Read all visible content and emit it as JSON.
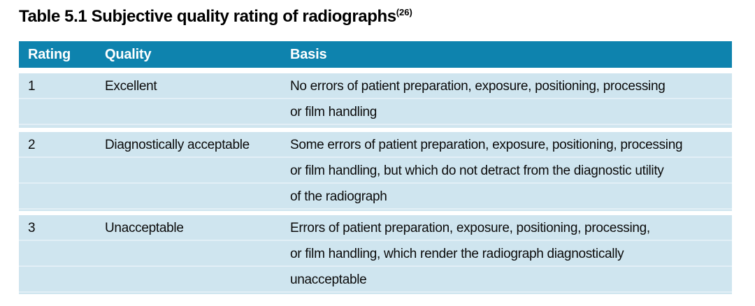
{
  "title": {
    "text": "Table 5.1 Subjective quality rating of radiographs",
    "superscript": "(26)"
  },
  "table": {
    "columns": [
      "Rating",
      "Quality",
      "Basis"
    ],
    "rows": [
      {
        "rating": "1",
        "quality": "Excellent",
        "basis_lines": [
          "No errors of patient preparation, exposure, positioning, processing",
          "or film handling"
        ]
      },
      {
        "rating": "2",
        "quality": "Diagnostically acceptable",
        "basis_lines": [
          "Some errors of patient preparation, exposure, positioning, processing",
          "or film handling, but which do not detract from the diagnostic utility",
          "of the radiograph"
        ]
      },
      {
        "rating": "3",
        "quality": "Unacceptable",
        "basis_lines": [
          "Errors of patient preparation, exposure, positioning, processing,",
          "or film handling, which render the radiograph diagnostically",
          "unacceptable"
        ]
      }
    ]
  },
  "colors": {
    "header_bg": "#0e83ae",
    "header_text": "#ffffff",
    "row_bg": "#cfe5ef",
    "row_divider": "#e2eff6",
    "body_text": "#0b0b0b"
  }
}
